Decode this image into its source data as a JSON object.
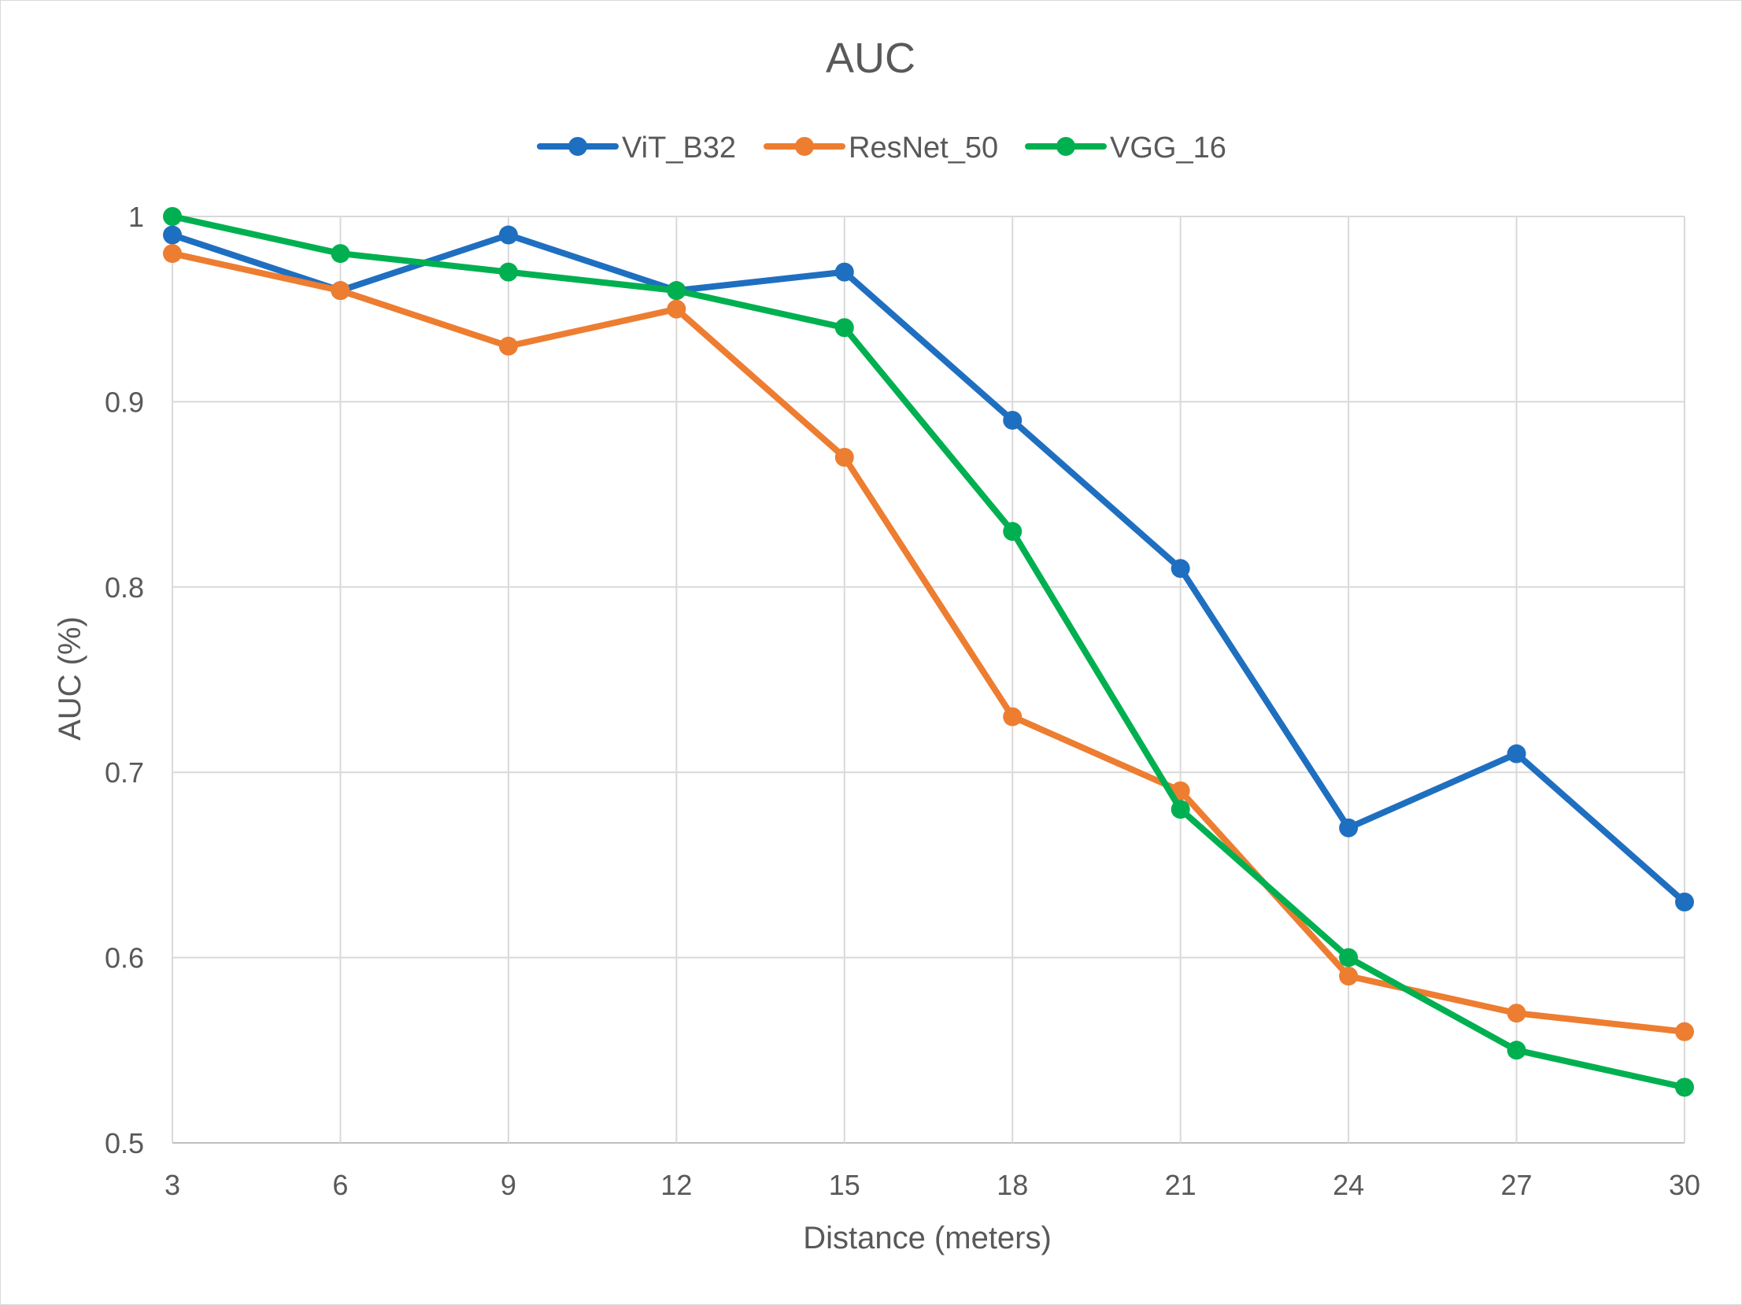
{
  "chart_data": {
    "type": "line",
    "title": "AUC",
    "xlabel": "Distance (meters)",
    "ylabel": "AUC (%)",
    "x": [
      3,
      6,
      9,
      12,
      15,
      18,
      21,
      24,
      27,
      30
    ],
    "xticks": [
      "3",
      "6",
      "9",
      "12",
      "15",
      "18",
      "21",
      "24",
      "27",
      "30"
    ],
    "ylim": [
      0.5,
      1
    ],
    "yticks": [
      "0.5",
      "0.6",
      "0.7",
      "0.8",
      "0.9",
      "1"
    ],
    "ytick_values": [
      0.5,
      0.6,
      0.7,
      0.8,
      0.9,
      1.0
    ],
    "grid": true,
    "legend_position": "top",
    "series": [
      {
        "name": "ViT_B32",
        "color": "#1f6fc0",
        "values": [
          0.99,
          0.96,
          0.99,
          0.96,
          0.97,
          0.89,
          0.81,
          0.67,
          0.71,
          0.63
        ]
      },
      {
        "name": "ResNet_50",
        "color": "#ed7d31",
        "values": [
          0.98,
          0.96,
          0.93,
          0.95,
          0.87,
          0.73,
          0.69,
          0.59,
          0.57,
          0.56
        ]
      },
      {
        "name": "VGG_16",
        "color": "#00b050",
        "values": [
          1.0,
          0.98,
          0.97,
          0.96,
          0.94,
          0.83,
          0.68,
          0.6,
          0.55,
          0.53
        ]
      }
    ]
  }
}
